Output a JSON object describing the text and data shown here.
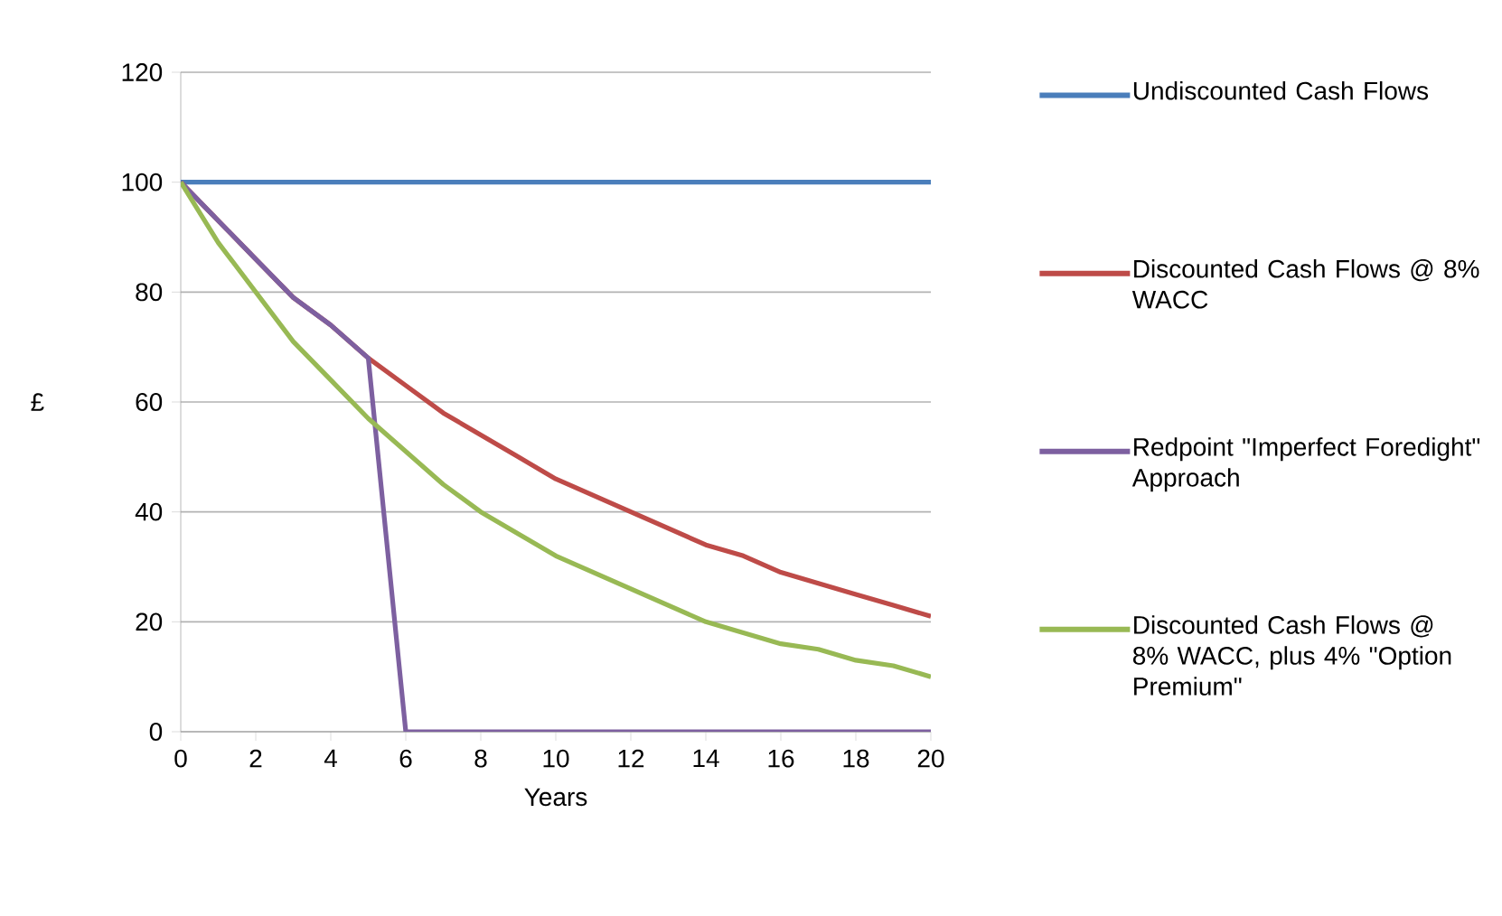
{
  "chart_data": {
    "type": "line",
    "xlabel": "Years",
    "ylabel": "£",
    "x": [
      0,
      1,
      2,
      3,
      4,
      5,
      6,
      7,
      8,
      9,
      10,
      11,
      12,
      13,
      14,
      15,
      16,
      17,
      18,
      19,
      20
    ],
    "xlim": [
      0,
      20
    ],
    "xticks": [
      0,
      2,
      4,
      6,
      8,
      10,
      12,
      14,
      16,
      18,
      20
    ],
    "ylim": [
      0,
      120
    ],
    "yticks": [
      0,
      20,
      40,
      60,
      80,
      100,
      120
    ],
    "grid": "y",
    "legend": "right",
    "marker": "none",
    "line_style": "solid",
    "series": [
      {
        "name": "Undiscounted Cash Flows",
        "color": "#4a7ebb",
        "values": [
          100,
          100,
          100,
          100,
          100,
          100,
          100,
          100,
          100,
          100,
          100,
          100,
          100,
          100,
          100,
          100,
          100,
          100,
          100,
          100,
          100
        ]
      },
      {
        "name": "Discounted Cash Flows @ 8% WACC",
        "color": "#be4b48",
        "values": [
          100,
          93,
          86,
          79,
          74,
          68,
          63,
          58,
          54,
          50,
          46,
          43,
          40,
          37,
          34,
          32,
          29,
          27,
          25,
          23,
          21
        ]
      },
      {
        "name": "Redpoint \"Imperfect Foredight\" Approach",
        "color": "#7d60a0",
        "values": [
          100,
          93,
          86,
          79,
          74,
          68,
          0,
          0,
          0,
          0,
          0,
          0,
          0,
          0,
          0,
          0,
          0,
          0,
          0,
          0,
          0
        ]
      },
      {
        "name": "Discounted Cash Flows @ 8% WACC, plus 4% \"Option Premium\"",
        "color": "#98b954",
        "values": [
          100,
          89,
          80,
          71,
          64,
          57,
          51,
          45,
          40,
          36,
          32,
          29,
          26,
          23,
          20,
          18,
          16,
          15,
          13,
          12,
          10
        ]
      }
    ]
  }
}
